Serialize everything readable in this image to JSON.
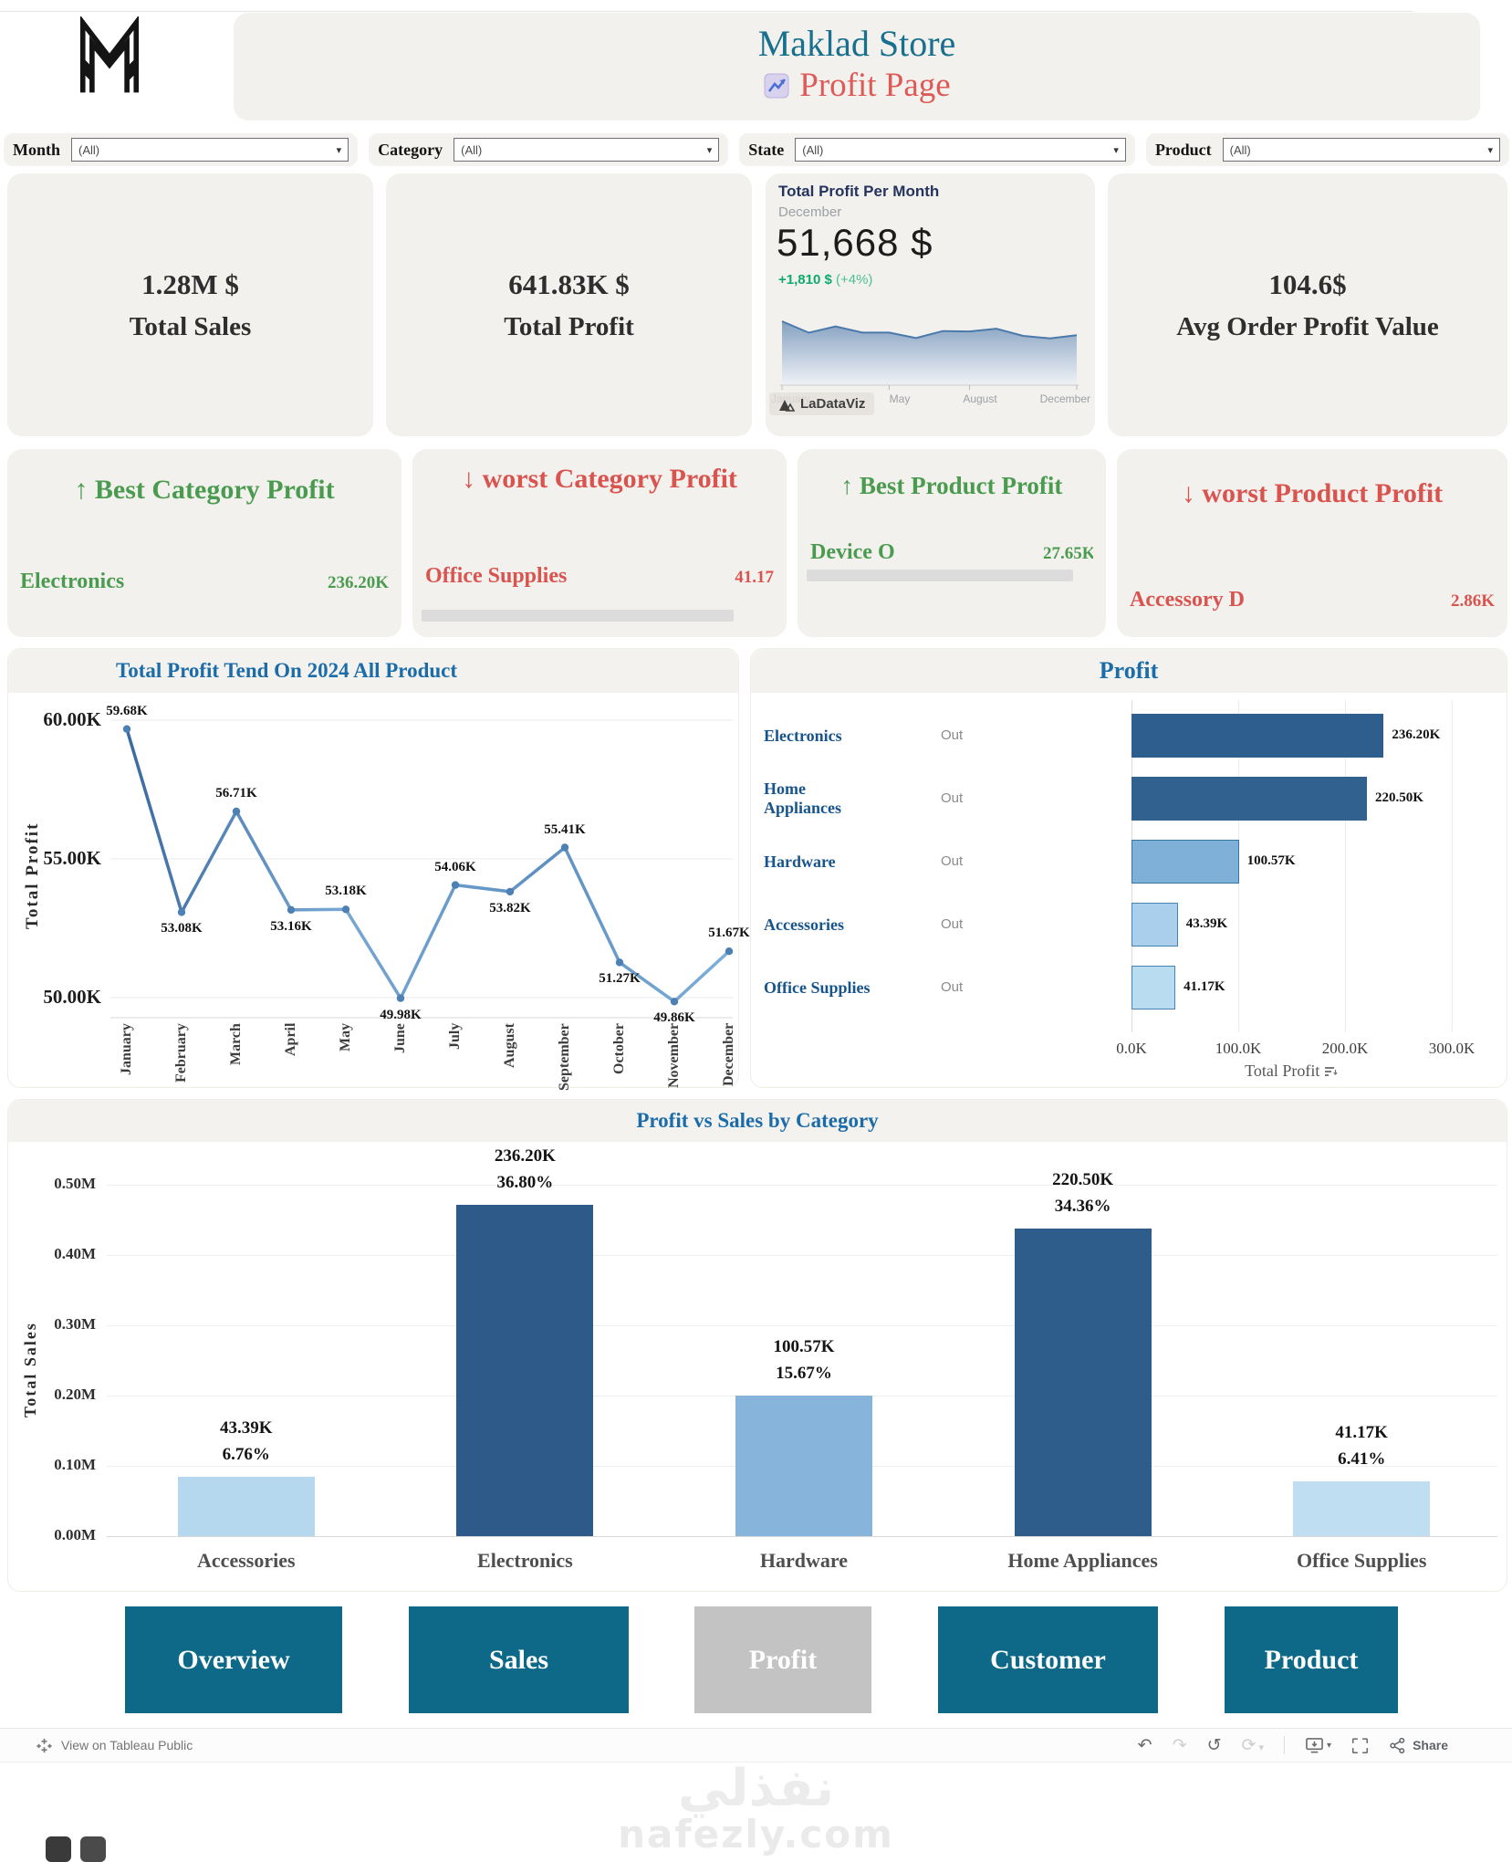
{
  "header": {
    "title": "Maklad Store",
    "subtitle": "Profit Page"
  },
  "filters": [
    {
      "label": "Month",
      "value": "(All)"
    },
    {
      "label": "Category",
      "value": "(All)"
    },
    {
      "label": "State",
      "value": "(All)"
    },
    {
      "label": "Product",
      "value": "(All)"
    }
  ],
  "kpis": {
    "total_sales": {
      "value": "1.28M $",
      "label": "Total Sales"
    },
    "total_profit": {
      "value": "641.83K $",
      "label": "Total Profit"
    },
    "monthly": {
      "title": "Total Profit Per Month",
      "period": "December",
      "value": "51,668 $",
      "delta": "+1,810 $",
      "delta_note": "(+4%)",
      "watermark": "LaDataViz"
    },
    "avg_order": {
      "value": "104.6$",
      "label": "Avg Order Profit Value"
    }
  },
  "highlights": [
    {
      "arrow": "↑",
      "title": "Best Category Profit",
      "name": "Electronics",
      "value": "236.20K",
      "tone": "good"
    },
    {
      "arrow": "↓",
      "title": "worst Category Profit",
      "name": "Office Supplies",
      "value": "41.17",
      "tone": "bad"
    },
    {
      "arrow": "↑",
      "title": "Best Product Profit",
      "name": "Device O",
      "value": "27.65K",
      "tone": "good"
    },
    {
      "arrow": "↓",
      "title": "worst Product Profit",
      "name": "Accessory D",
      "value": "2.86K",
      "tone": "bad"
    }
  ],
  "chart_data": [
    {
      "id": "monthly_profit_sparkline",
      "type": "area",
      "title": "Total Profit Per Month",
      "x": [
        "January",
        "February",
        "March",
        "April",
        "May",
        "June",
        "July",
        "August",
        "September",
        "October",
        "November",
        "December"
      ],
      "values": [
        59.68,
        53.08,
        56.71,
        53.16,
        53.18,
        49.98,
        54.06,
        53.82,
        55.41,
        51.27,
        49.86,
        51.67
      ],
      "x_ticks_shown": [
        "January",
        "May",
        "August",
        "December"
      ],
      "current": {
        "month": "December",
        "value_usd": 51668,
        "change_usd": 1810,
        "change_pct": 4
      }
    },
    {
      "id": "profit_trend",
      "type": "line",
      "title": "Total Profit Tend On 2024 All Product",
      "ylabel": "Total Profit",
      "ylim": [
        49,
        61
      ],
      "yticks": [
        {
          "v": 60,
          "label": "60.00K"
        },
        {
          "v": 55,
          "label": "55.00K"
        },
        {
          "v": 50,
          "label": "50.00K"
        }
      ],
      "categories": [
        "January",
        "February",
        "March",
        "April",
        "May",
        "June",
        "July",
        "August",
        "September",
        "October",
        "November",
        "December"
      ],
      "values": [
        59.68,
        53.08,
        56.71,
        53.16,
        53.18,
        49.98,
        54.06,
        53.82,
        55.41,
        51.27,
        49.86,
        51.67
      ],
      "point_labels": [
        "59.68K",
        "53.08K",
        "56.71K",
        "53.16K",
        "53.18K",
        "49.98K",
        "54.06K",
        "53.82K",
        "55.41K",
        "51.27K",
        "49.86K",
        "51.67K"
      ],
      "label_side": [
        "above",
        "below",
        "above",
        "below",
        "above",
        "below",
        "above",
        "below",
        "above",
        "below",
        "below",
        "above"
      ],
      "line_color": "#5f92c7",
      "grid": true,
      "legend": "none"
    },
    {
      "id": "profit_by_category",
      "type": "bar-h",
      "title": "Profit",
      "xlabel": "Total Profit",
      "xlim": [
        0,
        300
      ],
      "xticks": [
        {
          "v": 0,
          "label": "0.0K"
        },
        {
          "v": 100,
          "label": "100.0K"
        },
        {
          "v": 200,
          "label": "200.0K"
        },
        {
          "v": 300,
          "label": "300.0K"
        }
      ],
      "rows": [
        {
          "category": "Electronics",
          "status": "Out",
          "value": 236.2,
          "label": "236.20K",
          "color": "#2d5e8d",
          "border": "#2d5e8d"
        },
        {
          "category": "Home Appliances",
          "status": "Out",
          "value": 220.5,
          "label": "220.50K",
          "color": "#31618f",
          "border": "#31618f"
        },
        {
          "category": "Hardware",
          "status": "Out",
          "value": 100.57,
          "label": "100.57K",
          "color": "#7fb0d8",
          "border": "#39749f"
        },
        {
          "category": "Accessories",
          "status": "Out",
          "value": 43.39,
          "label": "43.39K",
          "color": "#a9cfec",
          "border": "#4583b2"
        },
        {
          "category": "Office Supplies",
          "status": "Out",
          "value": 41.17,
          "label": "41.17K",
          "color": "#b9dcf0",
          "border": "#4583b2"
        }
      ]
    },
    {
      "id": "profit_vs_sales",
      "type": "bar",
      "title": "Profit vs Sales by Category",
      "ylabel": "Total Sales",
      "ylim_M": [
        0,
        0.55
      ],
      "yticks": [
        {
          "v": 0,
          "label": "0.00M"
        },
        {
          "v": 0.1,
          "label": "0.10M"
        },
        {
          "v": 0.2,
          "label": "0.20M"
        },
        {
          "v": 0.3,
          "label": "0.30M"
        },
        {
          "v": 0.4,
          "label": "0.40M"
        },
        {
          "v": 0.5,
          "label": "0.50M"
        }
      ],
      "categories": [
        "Accessories",
        "Electronics",
        "Hardware",
        "Home Appliances",
        "Office Supplies"
      ],
      "sales_M": [
        0.085,
        0.471,
        0.2,
        0.438,
        0.078
      ],
      "profit_labels": [
        "43.39K",
        "236.20K",
        "100.57K",
        "220.50K",
        "41.17K"
      ],
      "pct_labels": [
        "6.76%",
        "36.80%",
        "15.67%",
        "34.36%",
        "6.41%"
      ],
      "colors": [
        "#b5d8ee",
        "#2d5a88",
        "#87b4da",
        "#2f5d8b",
        "#bfdef1"
      ],
      "grid": true
    }
  ],
  "nav": {
    "buttons": [
      {
        "label": "Overview",
        "active": false
      },
      {
        "label": "Sales",
        "active": false
      },
      {
        "label": "Profit",
        "active": true
      },
      {
        "label": "Customer",
        "active": false
      },
      {
        "label": "Product",
        "active": false
      }
    ]
  },
  "footer": {
    "view_label": "View on Tableau Public",
    "share_label": "Share"
  },
  "watermark": {
    "arabic": "نفذلي",
    "latin": "nafezly.com"
  },
  "colors": {
    "header_teal": "#19708e",
    "header_red": "#dd5a57",
    "good_green": "#4a9b50",
    "bad_red": "#d9534f",
    "chart_title_blue": "#1b6ca8",
    "nav_teal": "#0d6987",
    "nav_active_gray": "#c3c3c3",
    "delta_green": "#0cab68",
    "card_bg": "#f3f1ed"
  }
}
